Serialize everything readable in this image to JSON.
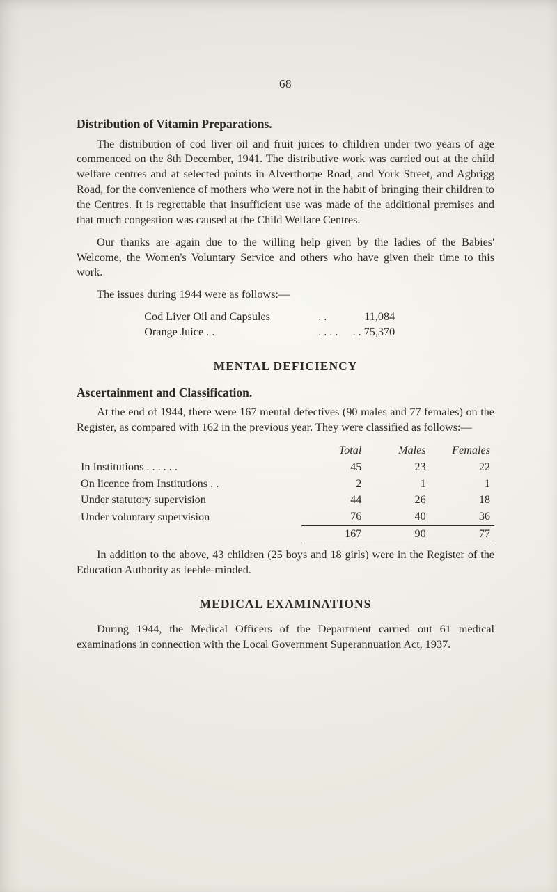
{
  "page_number": "68",
  "section1": {
    "heading": "Distribution of Vitamin Preparations.",
    "para1": "The distribution of cod liver oil and fruit juices to children under two years of age commenced on the 8th December, 1941. The distributive work was carried out at the child welfare centres and at selected points in Alverthorpe Road, and York Street, and Agbrigg Road, for the convenience of mothers who were not in the habit of bringing their children to the Centres. It is regrettable that insufficient use was made of the additional premises and that much congestion was caused at the Child Welfare Centres.",
    "para2": "Our thanks are again due to the willing help given by the ladies of the Babies' Welcome, the Women's Voluntary Service and others who have given their time to this work.",
    "para3": "The issues during 1944 were as follows:—",
    "figures": [
      {
        "label": "Cod Liver Oil and Capsules",
        "dots": ". .",
        "value": "11,084"
      },
      {
        "label": "Orange Juice . .",
        "dots": ". .   . .",
        "value": ". . 75,370"
      }
    ]
  },
  "section2": {
    "heading": "MENTAL DEFICIENCY",
    "subheading": "Ascertainment and Classification.",
    "para1": "At the end of 1944, there were 167 mental defectives (90 males and 77 females) on the Register, as compared with 162 in the previous year. They were classified as follows:—",
    "table": {
      "columns": [
        "",
        "Total",
        "Males",
        "Females"
      ],
      "rows": [
        {
          "label": "In Institutions . .     . .     . .",
          "total": "45",
          "males": "23",
          "females": "22"
        },
        {
          "label": "On licence from Institutions . .",
          "total": "2",
          "males": "1",
          "females": "1"
        },
        {
          "label": "Under statutory supervision",
          "total": "44",
          "males": "26",
          "females": "18"
        },
        {
          "label": "Under voluntary supervision",
          "total": "76",
          "males": "40",
          "females": "36"
        }
      ],
      "totals": {
        "total": "167",
        "males": "90",
        "females": "77"
      }
    },
    "para2": "In addition to the above, 43 children (25 boys and 18 girls) were in the Register of the Education Authority as feeble-minded."
  },
  "section3": {
    "heading": "MEDICAL EXAMINATIONS",
    "para1": "During 1944, the Medical Officers of the Department carried out 61 medical examinations in connection with the Local Government Superannuation Act, 1937."
  }
}
